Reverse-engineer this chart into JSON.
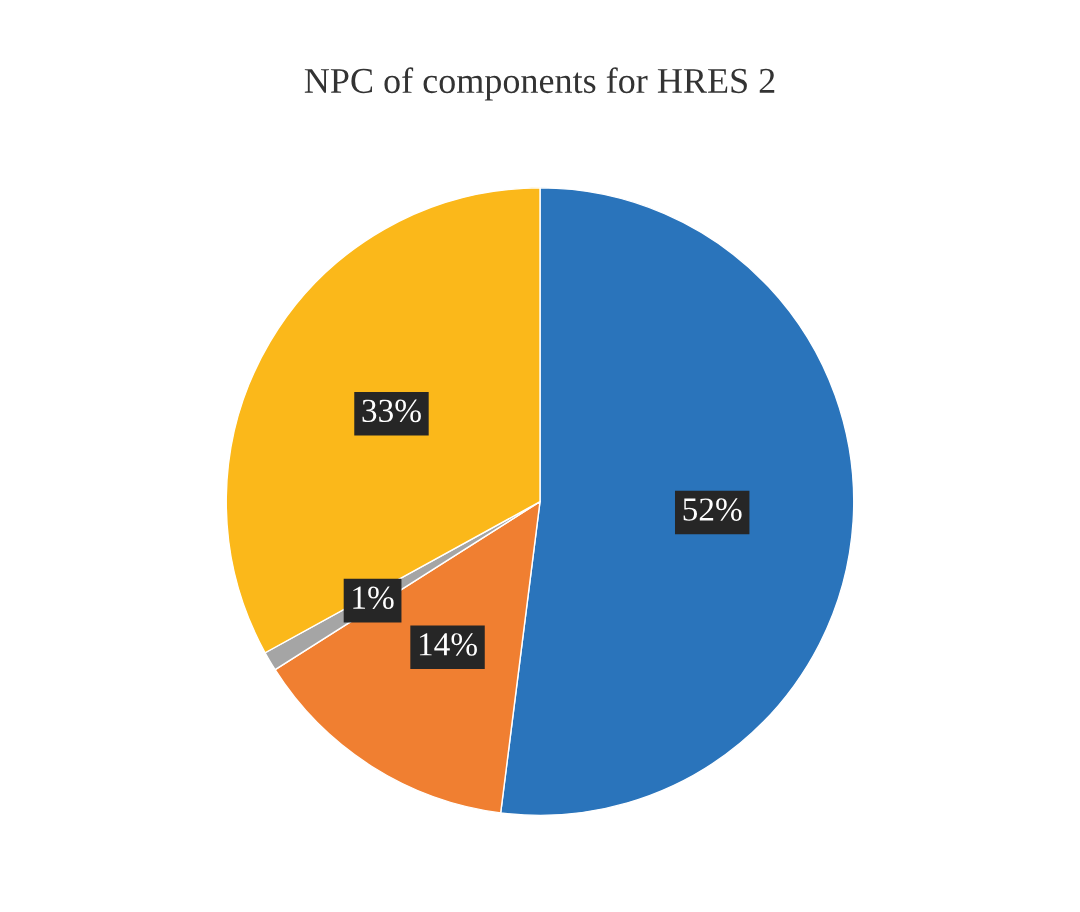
{
  "chart_data": {
    "type": "pie",
    "title": "NPC of components for HRES 2",
    "categories": [
      null,
      null,
      null,
      null
    ],
    "values": [
      52,
      14,
      1,
      33
    ],
    "colors": [
      "#2a74bb",
      "#f07f31",
      "#a5a5a5",
      "#fbb81a"
    ],
    "value_labels": [
      "52%",
      "14%",
      "1%",
      "33%"
    ],
    "legend": false
  }
}
